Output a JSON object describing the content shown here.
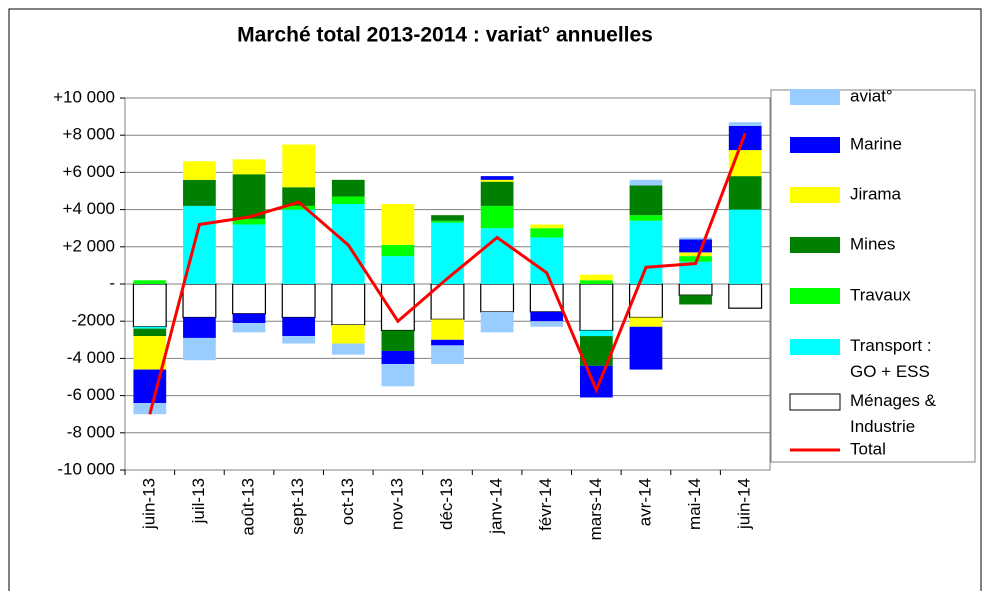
{
  "chart_data": {
    "type": "bar",
    "stacked": true,
    "title": "Marché total 2013-2014 : variat° annuelles",
    "categories": [
      "juin-13",
      "juil-13",
      "août-13",
      "sept-13",
      "oct-13",
      "nov-13",
      "déc-13",
      "janv-14",
      "févr-14",
      "mars-14",
      "avr-14",
      "mai-14",
      "juin-14"
    ],
    "series": [
      {
        "name": "Ménages &\nIndustrie",
        "color": "#ffffff",
        "values": [
          -2300,
          -1800,
          -1600,
          -1800,
          -2200,
          -2500,
          -1900,
          -1500,
          -1500,
          -2500,
          -1800,
          -600,
          -1300
        ]
      },
      {
        "name": "Transport :\nGO + ESS",
        "color": "#00ffff",
        "values": [
          -100,
          4200,
          3200,
          4000,
          4300,
          1500,
          3300,
          3000,
          2500,
          -300,
          3400,
          1200,
          4000
        ]
      },
      {
        "name": "Travaux",
        "color": "#00ff00",
        "values": [
          200,
          0,
          300,
          200,
          400,
          600,
          100,
          1200,
          500,
          200,
          300,
          300,
          0
        ]
      },
      {
        "name": "Mines",
        "color": "#008000",
        "values": [
          -400,
          1400,
          2400,
          1000,
          900,
          -1100,
          300,
          1300,
          0,
          -1600,
          1600,
          -500,
          1800
        ]
      },
      {
        "name": "Jirama",
        "color": "#ffff00",
        "values": [
          -1800,
          1000,
          800,
          2300,
          -1000,
          2200,
          -1100,
          100,
          200,
          300,
          -500,
          200,
          1400
        ]
      },
      {
        "name": "Marine",
        "color": "#0000ff",
        "values": [
          -1800,
          -1100,
          -500,
          -1000,
          0,
          -700,
          -300,
          200,
          -500,
          -1700,
          -2300,
          700,
          1300
        ]
      },
      {
        "name": "aviat°",
        "color": "#99ccff",
        "values": [
          -600,
          -1200,
          -500,
          -400,
          -600,
          -1200,
          -1000,
          -1100,
          -300,
          0,
          300,
          100,
          200
        ]
      },
      {
        "name": "Total",
        "type": "line",
        "color": "#ff0000",
        "values": [
          -7000,
          3200,
          3600,
          4400,
          2100,
          -2000,
          300,
          2500,
          600,
          -5700,
          900,
          1100,
          8100
        ]
      }
    ],
    "ylim": [
      -10000,
      10000
    ],
    "yticks": [
      {
        "value": 10000,
        "label": "+10 000"
      },
      {
        "value": 8000,
        "label": "+8 000"
      },
      {
        "value": 6000,
        "label": "+6 000"
      },
      {
        "value": 4000,
        "label": "+4 000"
      },
      {
        "value": 2000,
        "label": "+2 000"
      },
      {
        "value": 0,
        "label": "-"
      },
      {
        "value": -2000,
        "label": "-2000"
      },
      {
        "value": -4000,
        "label": "-4 000"
      },
      {
        "value": -6000,
        "label": "-6 000"
      },
      {
        "value": -8000,
        "label": "-8 000"
      },
      {
        "value": -10000,
        "label": "-10 000"
      }
    ],
    "grid": true,
    "legend": "right"
  }
}
